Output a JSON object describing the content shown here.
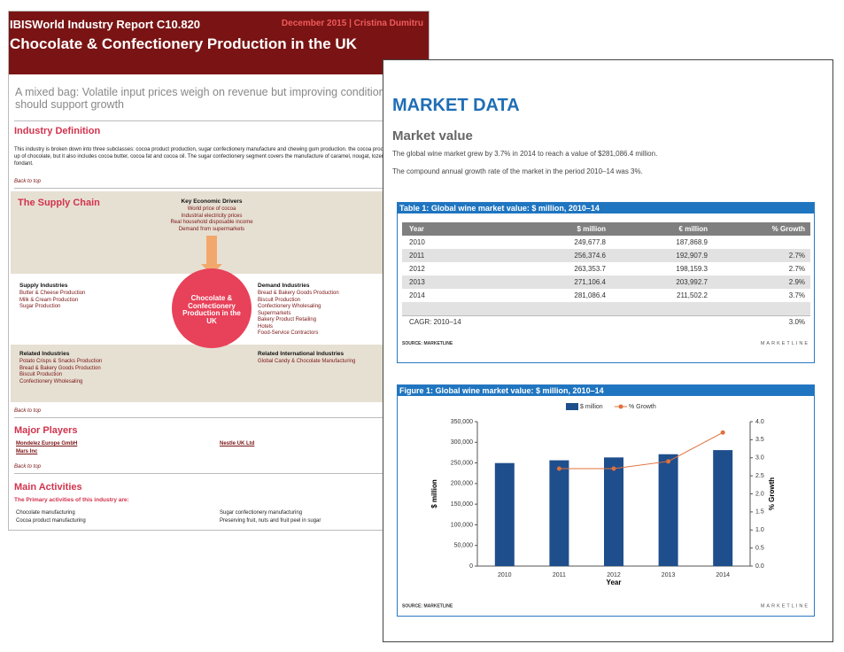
{
  "report": {
    "header": {
      "report": "IBISWorld Industry Report C10.820",
      "date_author": "December 2015  |  Cristina Dumitru",
      "title": "Chocolate & Confectionery Production in the UK"
    },
    "subtitle": "A mixed bag: Volatile input prices weigh on revenue but improving conditions should support growth",
    "definition": {
      "heading": "Industry Definition",
      "text": "This industry is broken down into three subclasses: cocoa product production, sugar confectionery manufacture and chewing gum production. the cocoa product segment is made up of chocolate, but it also includes cocoa butter, cocoa fat and cocoa oil. The sugar confectionery segment covers the manufacture of caramel, nougat, lozenges, toffee and fondant."
    },
    "back_to_top": [
      "Back to top",
      "Back to top",
      "Back to top"
    ],
    "supply_chain": {
      "heading": "The Supply Chain",
      "drivers": {
        "heading": "Key Economic Drivers",
        "items": [
          "World price of cocoa",
          "Industrial electricity prices",
          "Real household disposable income",
          "Demand from supermarkets"
        ]
      },
      "center": "Chocolate & Confectionery Production in the UK",
      "supply": {
        "heading": "Supply Industries",
        "items": [
          "Butter & Cheese Production",
          "Milk & Cream Production",
          "Sugar Production"
        ]
      },
      "demand": {
        "heading": "Demand Industries",
        "items": [
          "Bread & Bakery Goods Production",
          "Biscuit Production",
          "Confectionery Wholesaling",
          "Supermarkets",
          "Bakery Product Retailing",
          "Hotels",
          "Food-Service Contractors"
        ]
      },
      "related": {
        "heading": "Related Industries",
        "items": [
          "Potato Crisps & Snacks Production",
          "Bread & Bakery Goods Production",
          "Biscuit Production",
          "Confectionery Wholesaling"
        ]
      },
      "international": {
        "heading": "Related International Industries",
        "items": [
          "Global Candy & Chocolate Manufacturing"
        ]
      }
    },
    "players": {
      "heading": "Major Players",
      "items": [
        "Mondelez Europe GmbH",
        "Nestle UK Ltd",
        "Mars Inc"
      ]
    },
    "activities": {
      "heading": "Main Activities",
      "intro": "The Primary activities of this industry are:",
      "items": [
        "Chocolate manufacturing",
        "Sugar confectionery manufacturing",
        "Cocoa product manufacturing",
        "Preserving fruit, nuts and fruit peel in sugar"
      ]
    }
  },
  "market": {
    "heading": "MARKET DATA",
    "subheading": "Market value",
    "paragraphs": [
      "The global wine market grew by 3.7% in 2014 to reach a value of $281,086.4 million.",
      "The compound annual growth rate of the market in the period 2010–14 was 3%."
    ],
    "table": {
      "title": "Table 1: Global wine market value: $ million, 2010–14",
      "header": [
        "Year",
        "$ million",
        "€ million",
        "% Growth"
      ],
      "rows": [
        [
          "2010",
          "249,677.8",
          "187,868.9",
          ""
        ],
        [
          "2011",
          "256,374.6",
          "192,907.9",
          "2.7%"
        ],
        [
          "2012",
          "263,353.7",
          "198,159.3",
          "2.7%"
        ],
        [
          "2013",
          "271,106.4",
          "203,992.7",
          "2.9%"
        ],
        [
          "2014",
          "281,086.4",
          "211,502.2",
          "3.7%"
        ]
      ],
      "cagr": [
        "CAGR: 2010–14",
        "3.0%"
      ],
      "source": "SOURCE: MARKETLINE",
      "brand": "MARKETLINE"
    }
  },
  "chart_data": {
    "type": "bar",
    "title": "Figure 1: Global wine market value: $ million, 2010–14",
    "categories": [
      "2010",
      "2011",
      "2012",
      "2013",
      "2014"
    ],
    "series": [
      {
        "name": "$ million",
        "type": "bar",
        "color": "#1f4e8c",
        "values": [
          249677.8,
          256374.6,
          263353.7,
          271106.4,
          281086.4
        ]
      },
      {
        "name": "% Growth",
        "type": "line",
        "axis": "y2",
        "color": "#e0703a",
        "values": [
          null,
          2.7,
          2.7,
          2.9,
          3.7
        ]
      }
    ],
    "ylim": [
      0,
      350000
    ],
    "yticks": [
      0,
      {
        "value": 50000,
        "label": "50,000"
      },
      {
        "value": 100000,
        "label": "100,000"
      },
      {
        "value": 150000,
        "label": "150,000"
      },
      {
        "value": 200000,
        "label": "200,000"
      },
      {
        "value": 250000,
        "label": "250,000"
      },
      {
        "value": 300000,
        "label": "300,000"
      },
      {
        "value": 350000,
        "label": "350,000"
      }
    ],
    "y2lim": [
      0,
      4
    ],
    "y2ticks": [
      {
        "value": 0,
        "label": "0.0"
      },
      0.5,
      {
        "value": 1,
        "label": "1.0"
      },
      1.5,
      {
        "value": 2,
        "label": "2.0"
      },
      2.5,
      {
        "value": 3,
        "label": "3.0"
      },
      3.5,
      {
        "value": 4,
        "label": "4.0"
      }
    ],
    "xlabel": "Year",
    "ylabel": "$ million",
    "y2label": "% Growth",
    "source": "SOURCE: MARKETLINE",
    "brand": "MARKETLINE"
  }
}
